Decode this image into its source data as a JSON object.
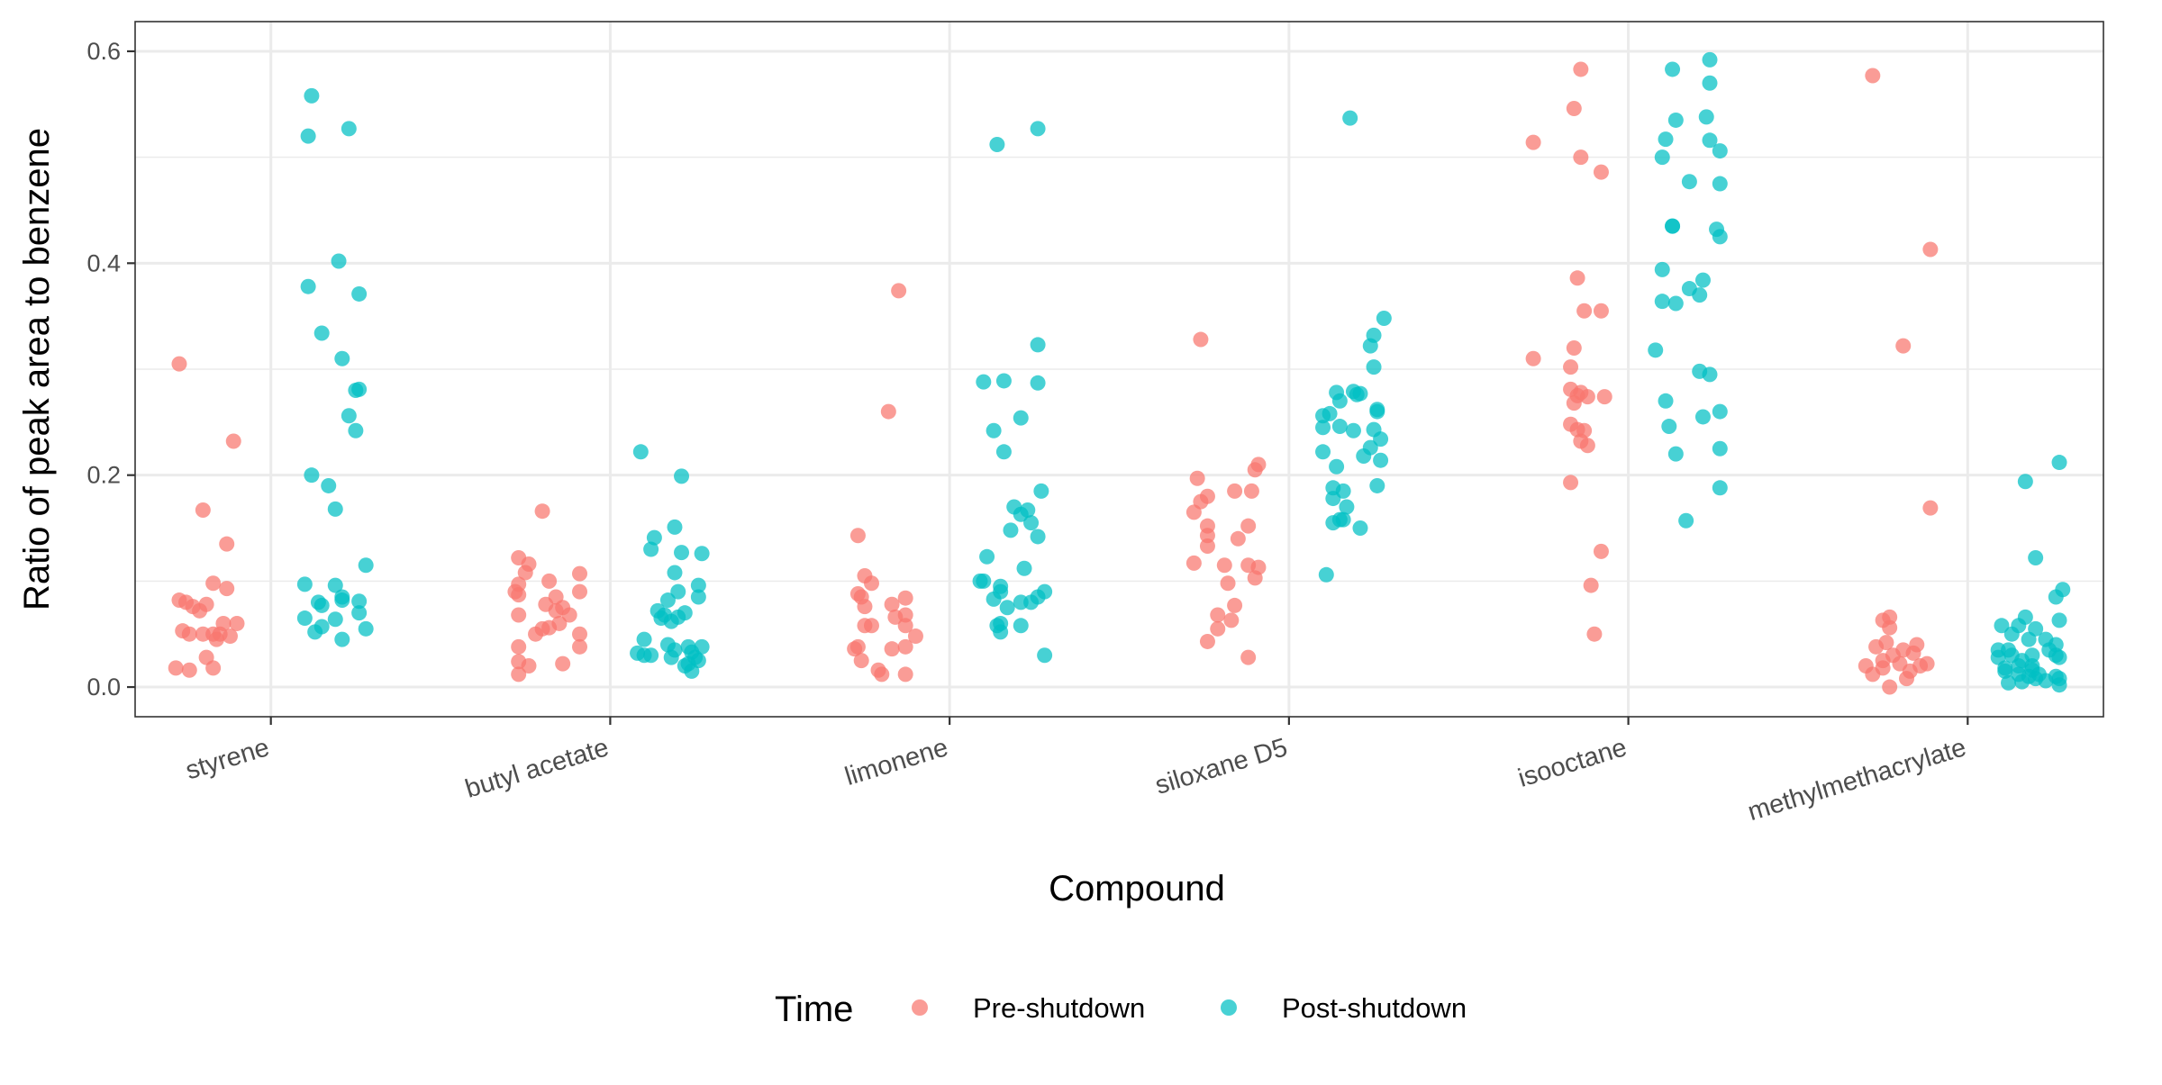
{
  "chart_data": {
    "type": "scatter",
    "xlabel": "Compound",
    "ylabel": "Ratio of peak area to benzene",
    "ylim": [
      -0.028,
      0.628
    ],
    "yticks": [
      0.0,
      0.2,
      0.4,
      0.6
    ],
    "ytick_labels": [
      "0.0",
      "0.2",
      "0.4",
      "0.6"
    ],
    "grid": true,
    "categories": [
      "styrene",
      "butyl acetate",
      "limonene",
      "siloxane D5",
      "isooctane",
      "methylmethacrylate"
    ],
    "legend": {
      "title": "Time",
      "position": "bottom"
    },
    "series": [
      {
        "name": "Pre-shutdown",
        "color": "#F8766D",
        "points": [
          [
            -0.27,
            0.305
          ],
          [
            -0.11,
            0.232
          ],
          [
            -0.2,
            0.167
          ],
          [
            -0.13,
            0.135
          ],
          [
            -0.17,
            0.098
          ],
          [
            -0.13,
            0.093
          ],
          [
            -0.27,
            0.082
          ],
          [
            -0.25,
            0.08
          ],
          [
            -0.23,
            0.076
          ],
          [
            -0.19,
            0.078
          ],
          [
            -0.21,
            0.072
          ],
          [
            -0.14,
            0.06
          ],
          [
            -0.1,
            0.06
          ],
          [
            -0.26,
            0.053
          ],
          [
            -0.24,
            0.05
          ],
          [
            -0.2,
            0.05
          ],
          [
            -0.17,
            0.05
          ],
          [
            -0.15,
            0.05
          ],
          [
            -0.12,
            0.048
          ],
          [
            -0.19,
            0.028
          ],
          [
            -0.28,
            0.018
          ],
          [
            -0.24,
            0.016
          ],
          [
            -0.17,
            0.018
          ],
          [
            -0.16,
            0.045
          ],
          [
            -0.2,
            0.166
          ],
          [
            -0.27,
            0.122
          ],
          [
            -0.24,
            0.116
          ],
          [
            -0.25,
            0.108
          ],
          [
            -0.09,
            0.107
          ],
          [
            -0.18,
            0.1
          ],
          [
            -0.27,
            0.097
          ],
          [
            -0.28,
            0.09
          ],
          [
            -0.09,
            0.09
          ],
          [
            -0.27,
            0.087
          ],
          [
            -0.16,
            0.085
          ],
          [
            -0.19,
            0.078
          ],
          [
            -0.14,
            0.075
          ],
          [
            -0.16,
            0.072
          ],
          [
            -0.12,
            0.068
          ],
          [
            -0.27,
            0.068
          ],
          [
            -0.15,
            0.06
          ],
          [
            -0.18,
            0.056
          ],
          [
            -0.22,
            0.05
          ],
          [
            -0.09,
            0.05
          ],
          [
            -0.09,
            0.038
          ],
          [
            -0.27,
            0.038
          ],
          [
            -0.14,
            0.022
          ],
          [
            -0.27,
            0.024
          ],
          [
            -0.24,
            0.02
          ],
          [
            -0.27,
            0.012
          ],
          [
            -0.2,
            0.055
          ],
          [
            -0.15,
            0.374
          ],
          [
            -0.18,
            0.26
          ],
          [
            -0.27,
            0.143
          ],
          [
            -0.25,
            0.105
          ],
          [
            -0.23,
            0.098
          ],
          [
            -0.27,
            0.088
          ],
          [
            -0.26,
            0.085
          ],
          [
            -0.13,
            0.084
          ],
          [
            -0.17,
            0.078
          ],
          [
            -0.25,
            0.076
          ],
          [
            -0.13,
            0.068
          ],
          [
            -0.16,
            0.066
          ],
          [
            -0.13,
            0.058
          ],
          [
            -0.25,
            0.058
          ],
          [
            -0.23,
            0.058
          ],
          [
            -0.1,
            0.048
          ],
          [
            -0.27,
            0.038
          ],
          [
            -0.28,
            0.036
          ],
          [
            -0.17,
            0.036
          ],
          [
            -0.13,
            0.038
          ],
          [
            -0.26,
            0.025
          ],
          [
            -0.21,
            0.016
          ],
          [
            -0.2,
            0.012
          ],
          [
            -0.13,
            0.012
          ],
          [
            -0.26,
            0.328
          ],
          [
            -0.09,
            0.21
          ],
          [
            -0.27,
            0.197
          ],
          [
            -0.1,
            0.205
          ],
          [
            -0.24,
            0.18
          ],
          [
            -0.16,
            0.185
          ],
          [
            -0.26,
            0.175
          ],
          [
            -0.11,
            0.185
          ],
          [
            -0.28,
            0.165
          ],
          [
            -0.24,
            0.152
          ],
          [
            -0.12,
            0.152
          ],
          [
            -0.24,
            0.143
          ],
          [
            -0.15,
            0.14
          ],
          [
            -0.24,
            0.133
          ],
          [
            -0.28,
            0.117
          ],
          [
            -0.19,
            0.115
          ],
          [
            -0.12,
            0.115
          ],
          [
            -0.09,
            0.113
          ],
          [
            -0.1,
            0.103
          ],
          [
            -0.18,
            0.098
          ],
          [
            -0.16,
            0.077
          ],
          [
            -0.21,
            0.068
          ],
          [
            -0.17,
            0.063
          ],
          [
            -0.21,
            0.055
          ],
          [
            -0.24,
            0.043
          ],
          [
            -0.12,
            0.028
          ],
          [
            -0.14,
            0.583
          ],
          [
            -0.16,
            0.546
          ],
          [
            -0.28,
            0.514
          ],
          [
            -0.14,
            0.5
          ],
          [
            -0.08,
            0.486
          ],
          [
            -0.15,
            0.386
          ],
          [
            -0.13,
            0.355
          ],
          [
            -0.08,
            0.355
          ],
          [
            -0.16,
            0.32
          ],
          [
            -0.28,
            0.31
          ],
          [
            -0.17,
            0.302
          ],
          [
            -0.17,
            0.281
          ],
          [
            -0.15,
            0.275
          ],
          [
            -0.14,
            0.278
          ],
          [
            -0.12,
            0.274
          ],
          [
            -0.07,
            0.274
          ],
          [
            -0.16,
            0.268
          ],
          [
            -0.17,
            0.248
          ],
          [
            -0.15,
            0.243
          ],
          [
            -0.13,
            0.242
          ],
          [
            -0.14,
            0.232
          ],
          [
            -0.12,
            0.228
          ],
          [
            -0.17,
            0.193
          ],
          [
            -0.08,
            0.128
          ],
          [
            -0.11,
            0.096
          ],
          [
            -0.1,
            0.05
          ],
          [
            -0.28,
            0.577
          ],
          [
            -0.11,
            0.413
          ],
          [
            -0.19,
            0.322
          ],
          [
            -0.11,
            0.169
          ],
          [
            -0.23,
            0.066
          ],
          [
            -0.25,
            0.063
          ],
          [
            -0.23,
            0.056
          ],
          [
            -0.27,
            0.038
          ],
          [
            -0.24,
            0.042
          ],
          [
            -0.15,
            0.04
          ],
          [
            -0.19,
            0.035
          ],
          [
            -0.22,
            0.03
          ],
          [
            -0.16,
            0.032
          ],
          [
            -0.25,
            0.025
          ],
          [
            -0.2,
            0.022
          ],
          [
            -0.12,
            0.022
          ],
          [
            -0.14,
            0.02
          ],
          [
            -0.3,
            0.02
          ],
          [
            -0.17,
            0.015
          ],
          [
            -0.28,
            0.012
          ],
          [
            -0.18,
            0.008
          ],
          [
            -0.23,
            0.0
          ],
          [
            -0.25,
            0.018
          ]
        ]
      },
      {
        "name": "Post-shutdown",
        "color": "#00BFC4",
        "points": [
          [
            0.12,
            0.558
          ],
          [
            0.11,
            0.52
          ],
          [
            0.23,
            0.527
          ],
          [
            0.2,
            0.402
          ],
          [
            0.11,
            0.378
          ],
          [
            0.15,
            0.334
          ],
          [
            0.26,
            0.371
          ],
          [
            0.21,
            0.31
          ],
          [
            0.25,
            0.28
          ],
          [
            0.26,
            0.281
          ],
          [
            0.23,
            0.256
          ],
          [
            0.25,
            0.242
          ],
          [
            0.12,
            0.2
          ],
          [
            0.17,
            0.19
          ],
          [
            0.19,
            0.168
          ],
          [
            0.28,
            0.115
          ],
          [
            0.1,
            0.097
          ],
          [
            0.19,
            0.096
          ],
          [
            0.14,
            0.08
          ],
          [
            0.21,
            0.085
          ],
          [
            0.26,
            0.081
          ],
          [
            0.21,
            0.082
          ],
          [
            0.15,
            0.077
          ],
          [
            0.26,
            0.07
          ],
          [
            0.1,
            0.065
          ],
          [
            0.19,
            0.064
          ],
          [
            0.15,
            0.057
          ],
          [
            0.13,
            0.052
          ],
          [
            0.28,
            0.055
          ],
          [
            0.21,
            0.045
          ],
          [
            0.09,
            0.222
          ],
          [
            0.21,
            0.199
          ],
          [
            0.13,
            0.141
          ],
          [
            0.19,
            0.151
          ],
          [
            0.12,
            0.13
          ],
          [
            0.21,
            0.127
          ],
          [
            0.27,
            0.126
          ],
          [
            0.19,
            0.108
          ],
          [
            0.26,
            0.096
          ],
          [
            0.2,
            0.09
          ],
          [
            0.26,
            0.085
          ],
          [
            0.17,
            0.082
          ],
          [
            0.14,
            0.072
          ],
          [
            0.22,
            0.07
          ],
          [
            0.16,
            0.068
          ],
          [
            0.2,
            0.066
          ],
          [
            0.15,
            0.065
          ],
          [
            0.18,
            0.062
          ],
          [
            0.1,
            0.045
          ],
          [
            0.1,
            0.03
          ],
          [
            0.12,
            0.03
          ],
          [
            0.17,
            0.04
          ],
          [
            0.19,
            0.035
          ],
          [
            0.23,
            0.038
          ],
          [
            0.27,
            0.038
          ],
          [
            0.24,
            0.033
          ],
          [
            0.25,
            0.028
          ],
          [
            0.26,
            0.025
          ],
          [
            0.23,
            0.022
          ],
          [
            0.18,
            0.028
          ],
          [
            0.22,
            0.02
          ],
          [
            0.24,
            0.015
          ],
          [
            0.08,
            0.032
          ],
          [
            0.14,
            0.512
          ],
          [
            0.26,
            0.527
          ],
          [
            0.26,
            0.323
          ],
          [
            0.1,
            0.288
          ],
          [
            0.16,
            0.289
          ],
          [
            0.26,
            0.287
          ],
          [
            0.21,
            0.254
          ],
          [
            0.13,
            0.242
          ],
          [
            0.16,
            0.222
          ],
          [
            0.27,
            0.185
          ],
          [
            0.19,
            0.17
          ],
          [
            0.23,
            0.167
          ],
          [
            0.21,
            0.163
          ],
          [
            0.24,
            0.155
          ],
          [
            0.18,
            0.148
          ],
          [
            0.26,
            0.142
          ],
          [
            0.11,
            0.123
          ],
          [
            0.22,
            0.112
          ],
          [
            0.09,
            0.1
          ],
          [
            0.1,
            0.1
          ],
          [
            0.15,
            0.095
          ],
          [
            0.15,
            0.09
          ],
          [
            0.28,
            0.09
          ],
          [
            0.26,
            0.085
          ],
          [
            0.21,
            0.08
          ],
          [
            0.13,
            0.083
          ],
          [
            0.17,
            0.075
          ],
          [
            0.24,
            0.08
          ],
          [
            0.15,
            0.06
          ],
          [
            0.21,
            0.058
          ],
          [
            0.14,
            0.058
          ],
          [
            0.15,
            0.052
          ],
          [
            0.28,
            0.03
          ]
        ]
      }
    ]
  }
}
